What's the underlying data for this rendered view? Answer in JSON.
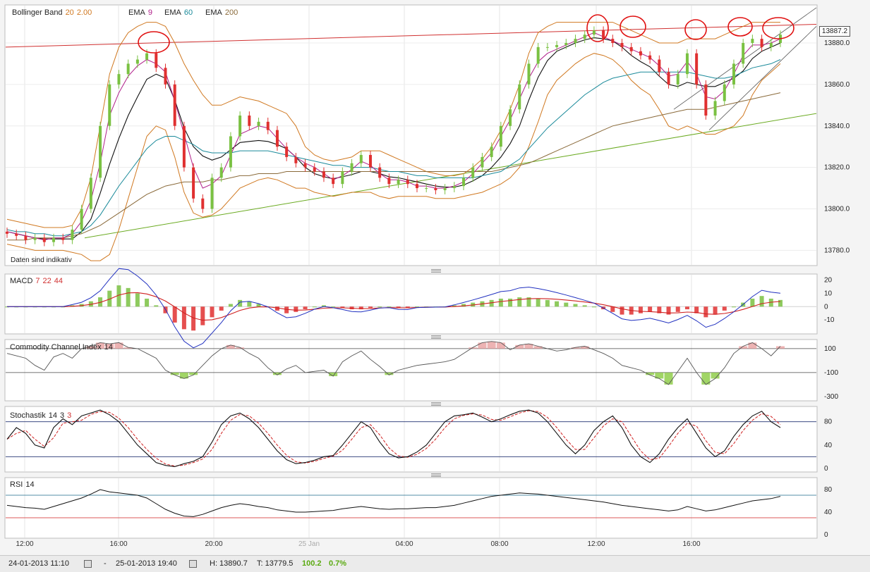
{
  "header": {
    "bollinger": {
      "name": "Bollinger Band",
      "p1": "20",
      "p2": "2.00"
    },
    "ema1": {
      "name": "EMA",
      "p": "9"
    },
    "ema2": {
      "name": "EMA",
      "p": "60"
    },
    "ema3": {
      "name": "EMA",
      "p": "200"
    }
  },
  "notice": "Daten sind indikativ",
  "price_tag": "13887.2",
  "macd_label": {
    "name": "MACD",
    "p1": "7",
    "p2": "22",
    "p3": "44"
  },
  "cci_label": {
    "name": "Commodity Channel Index",
    "p": "14"
  },
  "stoch_label": {
    "name": "Stochastik",
    "p1": "14",
    "p2": "3",
    "p3": "3"
  },
  "rsi_label": {
    "name": "RSI",
    "p": "14"
  },
  "footer": {
    "from": "24-01-2013 11:10",
    "to": "25-01-2013 19:40",
    "h": "H: 13890.7",
    "t": "T: 13779.5",
    "change": "100.2",
    "change_pct": "0.7%"
  },
  "colors": {
    "up": "#7ac142",
    "down": "#e03030",
    "ema9": "#b0208a",
    "ema60": "#1a8a9a",
    "ema200": "#8a6a3a",
    "boll": "#d07820",
    "resist": "#d03030",
    "support": "#6aaa20",
    "circle": "#e01010"
  },
  "chart_data": [
    {
      "type": "line",
      "title": "Bollinger Band 20 2.00 / EMA 9 / EMA 60 / EMA 200",
      "x_ticks": [
        "12:00",
        "16:00",
        "20:00",
        "25 Jan",
        "04:00",
        "08:00",
        "12:00",
        "16:00"
      ],
      "y_ticks": [
        13780.0,
        13800.0,
        13820.0,
        13840.0,
        13860.0,
        13880.0
      ],
      "ylim": [
        13773,
        13898
      ],
      "close": [
        13788,
        13787,
        13785,
        13786,
        13784,
        13786,
        13785,
        13790,
        13800,
        13815,
        13840,
        13860,
        13865,
        13870,
        13872,
        13875,
        13868,
        13860,
        13840,
        13820,
        13805,
        13800,
        13815,
        13820,
        13835,
        13845,
        13840,
        13842,
        13838,
        13830,
        13825,
        13822,
        13820,
        13818,
        13815,
        13812,
        13818,
        13822,
        13826,
        13820,
        13815,
        13812,
        13814,
        13812,
        13810,
        13810,
        13809,
        13810,
        13811,
        13815,
        13820,
        13825,
        13830,
        13840,
        13848,
        13860,
        13870,
        13878,
        13878,
        13879,
        13880,
        13882,
        13884,
        13886,
        13882,
        13880,
        13878,
        13876,
        13874,
        13872,
        13866,
        13860,
        13865,
        13875,
        13860,
        13845,
        13852,
        13860,
        13870,
        13880,
        13882,
        13878,
        13880,
        13884
      ],
      "series": [
        {
          "name": "EMA 9",
          "values": [
            13789,
            13788,
            13787,
            13786,
            13785,
            13786,
            13786,
            13788,
            13794,
            13804,
            13822,
            13845,
            13856,
            13864,
            13869,
            13872,
            13870,
            13866,
            13852,
            13836,
            13820,
            13810,
            13812,
            13816,
            13826,
            13836,
            13838,
            13840,
            13839,
            13834,
            13829,
            13825,
            13822,
            13820,
            13817,
            13814,
            13816,
            13819,
            13823,
            13821,
            13817,
            13814,
            13814,
            13813,
            13811,
            13811,
            13810,
            13810,
            13811,
            13813,
            13817,
            13822,
            13827,
            13835,
            13843,
            13853,
            13863,
            13871,
            13875,
            13877,
            13879,
            13881,
            13883,
            13885,
            13883,
            13881,
            13879,
            13877,
            13875,
            13873,
            13869,
            13864,
            13865,
            13871,
            13865,
            13854,
            13853,
            13857,
            13865,
            13874,
            13879,
            13879,
            13880,
            13882
          ]
        },
        {
          "name": "EMA 60",
          "values": [
            13790,
            13789,
            13789,
            13788,
            13788,
            13787,
            13787,
            13788,
            13789,
            13792,
            13797,
            13804,
            13811,
            13817,
            13823,
            13829,
            13833,
            13835,
            13835,
            13833,
            13831,
            13828,
            13827,
            13827,
            13827,
            13828,
            13828,
            13828,
            13828,
            13827,
            13826,
            13825,
            13824,
            13823,
            13822,
            13821,
            13821,
            13820,
            13820,
            13820,
            13819,
            13818,
            13818,
            13817,
            13816,
            13816,
            13815,
            13815,
            13815,
            13815,
            13815,
            13816,
            13817,
            13818,
            13821,
            13824,
            13829,
            13834,
            13839,
            13843,
            13847,
            13851,
            13855,
            13858,
            13861,
            13863,
            13864,
            13865,
            13866,
            13866,
            13866,
            13866,
            13866,
            13866,
            13865,
            13864,
            13863,
            13863,
            13864,
            13866,
            13868,
            13869,
            13870,
            13872
          ]
        },
        {
          "name": "EMA 200",
          "values": [
            13785,
            13785,
            13785,
            13786,
            13786,
            13786,
            13786,
            13787,
            13788,
            13790,
            13792,
            13795,
            13798,
            13801,
            13804,
            13807,
            13809,
            13811,
            13812,
            13813,
            13813,
            13813,
            13814,
            13814,
            13815,
            13816,
            13816,
            13817,
            13817,
            13817,
            13818,
            13818,
            13818,
            13818,
            13818,
            13818,
            13818,
            13818,
            13818,
            13818,
            13818,
            13818,
            13818,
            13818,
            13818,
            13818,
            13818,
            13818,
            13818,
            13818,
            13818,
            13818,
            13818,
            13819,
            13820,
            13821,
            13822,
            13824,
            13826,
            13828,
            13830,
            13832,
            13834,
            13836,
            13838,
            13840,
            13841,
            13842,
            13843,
            13844,
            13845,
            13846,
            13847,
            13848,
            13848,
            13848,
            13849,
            13850,
            13851,
            13852,
            13853,
            13854,
            13855,
            13856
          ]
        },
        {
          "name": "Bollinger upper",
          "values": [
            13795,
            13794,
            13793,
            13792,
            13791,
            13791,
            13791,
            13792,
            13800,
            13815,
            13840,
            13865,
            13878,
            13885,
            13888,
            13890,
            13890,
            13888,
            13880,
            13870,
            13862,
            13855,
            13850,
            13850,
            13852,
            13854,
            13853,
            13852,
            13850,
            13848,
            13846,
            13840,
            13830,
            13826,
            13824,
            13823,
            13824,
            13825,
            13828,
            13828,
            13828,
            13826,
            13824,
            13822,
            13820,
            13818,
            13817,
            13816,
            13816,
            13817,
            13820,
            13824,
            13830,
            13838,
            13848,
            13860,
            13875,
            13885,
            13888,
            13890,
            13890,
            13890,
            13890,
            13890,
            13890,
            13890,
            13888,
            13886,
            13884,
            13882,
            13880,
            13880,
            13880,
            13882,
            13882,
            13882,
            13882,
            13884,
            13886,
            13888,
            13890,
            13890,
            13890,
            13890
          ]
        },
        {
          "name": "Bollinger lower",
          "values": [
            13783,
            13782,
            13781,
            13780,
            13780,
            13780,
            13780,
            13779,
            13778,
            13775,
            13775,
            13778,
            13790,
            13805,
            13820,
            13835,
            13840,
            13838,
            13825,
            13808,
            13798,
            13796,
            13797,
            13800,
            13805,
            13810,
            13812,
            13814,
            13815,
            13814,
            13812,
            13810,
            13810,
            13808,
            13807,
            13806,
            13807,
            13808,
            13808,
            13808,
            13806,
            13805,
            13806,
            13806,
            13806,
            13806,
            13805,
            13805,
            13805,
            13806,
            13807,
            13808,
            13810,
            13812,
            13815,
            13820,
            13830,
            13842,
            13855,
            13862,
            13866,
            13870,
            13873,
            13875,
            13874,
            13872,
            13868,
            13862,
            13858,
            13855,
            13848,
            13840,
            13838,
            13840,
            13838,
            13836,
            13836,
            13838,
            13840,
            13845,
            13855,
            13862,
            13866,
            13870
          ]
        }
      ]
    },
    {
      "type": "bar",
      "title": "MACD 7 22 44",
      "y_ticks": [
        20,
        10,
        0,
        -10
      ],
      "ylim": [
        -20,
        24
      ],
      "hist": [
        0,
        0,
        0,
        0,
        0,
        0,
        0,
        1,
        2,
        4,
        7,
        12,
        16,
        14,
        10,
        6,
        1,
        -5,
        -12,
        -17,
        -18,
        -14,
        -8,
        -3,
        2,
        5,
        4,
        2,
        0,
        -3,
        -5,
        -4,
        -2,
        0,
        1,
        0,
        -1,
        -2,
        -2,
        -1,
        0,
        0,
        -1,
        -1,
        0,
        0,
        0,
        0,
        1,
        2,
        3,
        4,
        5,
        6,
        6,
        7,
        7,
        6,
        5,
        4,
        3,
        2,
        1,
        0,
        -2,
        -4,
        -6,
        -6,
        -5,
        -4,
        -5,
        -6,
        -4,
        -2,
        -5,
        -8,
        -6,
        -3,
        0,
        3,
        6,
        8,
        6,
        5
      ]
    },
    {
      "type": "line",
      "title": "Commodity Channel Index 14",
      "y_ticks": [
        100,
        -100,
        -300
      ],
      "ylim": [
        -330,
        170
      ],
      "values": [
        60,
        40,
        20,
        -40,
        -80,
        30,
        60,
        20,
        100,
        120,
        150,
        140,
        150,
        110,
        100,
        60,
        20,
        -80,
        -120,
        -150,
        -120,
        -40,
        40,
        100,
        130,
        110,
        60,
        20,
        -60,
        -120,
        -70,
        -40,
        -100,
        -90,
        -80,
        -130,
        -10,
        40,
        80,
        10,
        -50,
        -120,
        -80,
        -60,
        -40,
        -30,
        -20,
        -10,
        10,
        60,
        110,
        150,
        160,
        150,
        90,
        130,
        140,
        120,
        100,
        80,
        90,
        110,
        120,
        90,
        60,
        20,
        -40,
        -60,
        -80,
        -120,
        -150,
        -200,
        -90,
        20,
        -100,
        -200,
        -150,
        -60,
        60,
        120,
        150,
        100,
        40,
        120
      ]
    },
    {
      "type": "line",
      "title": "Stochastik 14 3 3",
      "y_ticks": [
        80,
        40,
        0
      ],
      "ylim": [
        -5,
        105
      ],
      "values": [
        50,
        70,
        60,
        40,
        35,
        70,
        85,
        75,
        90,
        95,
        100,
        92,
        80,
        60,
        40,
        25,
        10,
        5,
        3,
        8,
        12,
        20,
        45,
        75,
        90,
        95,
        85,
        70,
        50,
        30,
        15,
        8,
        10,
        14,
        20,
        22,
        40,
        60,
        80,
        70,
        45,
        25,
        18,
        20,
        28,
        40,
        60,
        80,
        90,
        92,
        95,
        88,
        80,
        85,
        92,
        98,
        100,
        95,
        80,
        60,
        40,
        25,
        40,
        65,
        80,
        90,
        70,
        40,
        20,
        10,
        25,
        50,
        70,
        85,
        60,
        35,
        20,
        30,
        55,
        75,
        90,
        98,
        80,
        70
      ]
    },
    {
      "type": "line",
      "title": "RSI 14",
      "y_ticks": [
        80,
        40,
        0
      ],
      "ylim": [
        -5,
        100
      ],
      "values": [
        52,
        50,
        48,
        47,
        45,
        50,
        55,
        60,
        65,
        72,
        80,
        76,
        74,
        72,
        70,
        65,
        55,
        45,
        38,
        33,
        32,
        36,
        42,
        48,
        52,
        55,
        53,
        50,
        48,
        44,
        42,
        40,
        40,
        41,
        42,
        43,
        46,
        48,
        50,
        48,
        46,
        45,
        46,
        46,
        47,
        48,
        48,
        50,
        52,
        56,
        60,
        64,
        68,
        70,
        72,
        74,
        73,
        72,
        70,
        68,
        66,
        64,
        62,
        60,
        58,
        55,
        52,
        50,
        48,
        46,
        44,
        42,
        44,
        50,
        46,
        42,
        44,
        48,
        52,
        56,
        60,
        62,
        64,
        68
      ]
    }
  ]
}
